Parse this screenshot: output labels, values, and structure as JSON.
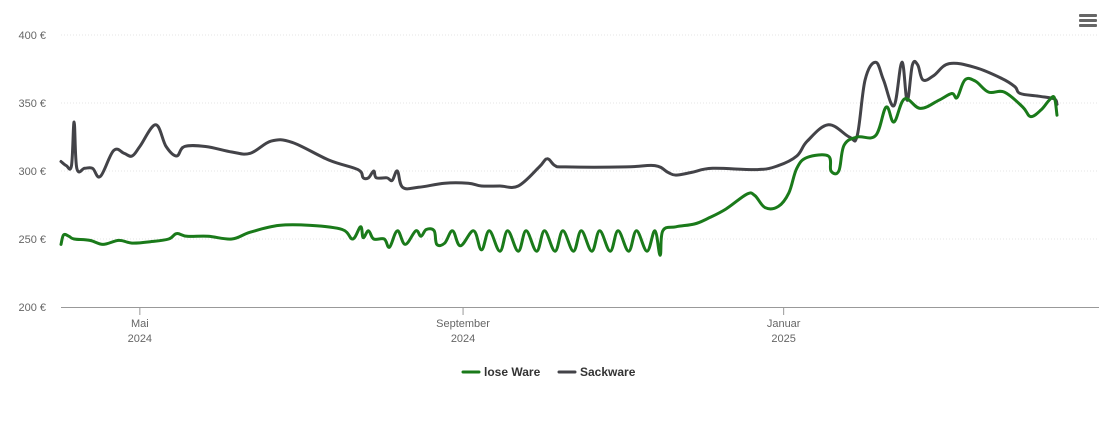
{
  "menu": {
    "icon": "hamburger-menu-icon"
  },
  "chart_data": {
    "type": "line",
    "title": "",
    "xlabel": "",
    "ylabel": "",
    "ylim": [
      200,
      400
    ],
    "y_ticks": [
      {
        "value": 200,
        "label": "200 €"
      },
      {
        "value": 250,
        "label": "250 €"
      },
      {
        "value": 300,
        "label": "300 €"
      },
      {
        "value": 350,
        "label": "350 €"
      },
      {
        "value": 400,
        "label": "400 €"
      }
    ],
    "xlim": [
      "2024-04-01",
      "2025-05-01"
    ],
    "x_ticks": [
      {
        "date": "2024-05-01",
        "line1": "Mai",
        "line2": "2024"
      },
      {
        "date": "2024-09-01",
        "line1": "September",
        "line2": "2024"
      },
      {
        "date": "2025-01-01",
        "line1": "Januar",
        "line2": "2025"
      }
    ],
    "grid": true,
    "legend_position": "bottom-center",
    "series": [
      {
        "name": "lose Ware",
        "color": "#1a7a1a",
        "points": [
          [
            "2024-04-01",
            246
          ],
          [
            "2024-04-02",
            253
          ],
          [
            "2024-04-04",
            252
          ],
          [
            "2024-04-06",
            250
          ],
          [
            "2024-04-12",
            249
          ],
          [
            "2024-04-17",
            246
          ],
          [
            "2024-04-23",
            249
          ],
          [
            "2024-04-28",
            247
          ],
          [
            "2024-05-05",
            248
          ],
          [
            "2024-05-12",
            250
          ],
          [
            "2024-05-15",
            254
          ],
          [
            "2024-05-19",
            252
          ],
          [
            "2024-05-27",
            252
          ],
          [
            "2024-06-05",
            250
          ],
          [
            "2024-06-12",
            255
          ],
          [
            "2024-06-23",
            260
          ],
          [
            "2024-07-05",
            260
          ],
          [
            "2024-07-17",
            257
          ],
          [
            "2024-07-21",
            250
          ],
          [
            "2024-07-24",
            259
          ],
          [
            "2024-07-25",
            251
          ],
          [
            "2024-07-27",
            256
          ],
          [
            "2024-07-29",
            250
          ],
          [
            "2024-08-02",
            250
          ],
          [
            "2024-08-04",
            244
          ],
          [
            "2024-08-07",
            256
          ],
          [
            "2024-08-10",
            246
          ],
          [
            "2024-08-14",
            256
          ],
          [
            "2024-08-16",
            252
          ],
          [
            "2024-08-18",
            257
          ],
          [
            "2024-08-21",
            256
          ],
          [
            "2024-08-22",
            246
          ],
          [
            "2024-08-25",
            247
          ],
          [
            "2024-08-28",
            256
          ],
          [
            "2024-08-31",
            245
          ],
          [
            "2024-09-05",
            256
          ],
          [
            "2024-09-08",
            242
          ],
          [
            "2024-09-11",
            256
          ],
          [
            "2024-09-15",
            241
          ],
          [
            "2024-09-18",
            256
          ],
          [
            "2024-09-22",
            241
          ],
          [
            "2024-09-25",
            256
          ],
          [
            "2024-09-29",
            241
          ],
          [
            "2024-10-02",
            256
          ],
          [
            "2024-10-06",
            241
          ],
          [
            "2024-10-09",
            256
          ],
          [
            "2024-10-13",
            241
          ],
          [
            "2024-10-16",
            256
          ],
          [
            "2024-10-20",
            241
          ],
          [
            "2024-10-23",
            256
          ],
          [
            "2024-10-27",
            241
          ],
          [
            "2024-10-30",
            256
          ],
          [
            "2024-11-03",
            241
          ],
          [
            "2024-11-06",
            256
          ],
          [
            "2024-11-10",
            241
          ],
          [
            "2024-11-13",
            256
          ],
          [
            "2024-11-15",
            238
          ],
          [
            "2024-11-16",
            256
          ],
          [
            "2024-11-21",
            259
          ],
          [
            "2024-11-28",
            261
          ],
          [
            "2024-12-03",
            265
          ],
          [
            "2024-12-10",
            272
          ],
          [
            "2024-12-18",
            283
          ],
          [
            "2024-12-21",
            282
          ],
          [
            "2024-12-25",
            273
          ],
          [
            "2024-12-30",
            274
          ],
          [
            "2025-01-03",
            284
          ],
          [
            "2025-01-06",
            302
          ],
          [
            "2025-01-10",
            310
          ],
          [
            "2025-01-18",
            311
          ],
          [
            "2025-01-19",
            300
          ],
          [
            "2025-01-22",
            300
          ],
          [
            "2025-01-24",
            319
          ],
          [
            "2025-01-29",
            325
          ],
          [
            "2025-02-05",
            326
          ],
          [
            "2025-02-09",
            347
          ],
          [
            "2025-02-12",
            336
          ],
          [
            "2025-02-16",
            353
          ],
          [
            "2025-02-22",
            346
          ],
          [
            "2025-03-01",
            352
          ],
          [
            "2025-03-06",
            357
          ],
          [
            "2025-03-08",
            354
          ],
          [
            "2025-03-11",
            367
          ],
          [
            "2025-03-15",
            366
          ],
          [
            "2025-03-20",
            358
          ],
          [
            "2025-03-26",
            358
          ],
          [
            "2025-04-02",
            347
          ],
          [
            "2025-04-05",
            340
          ],
          [
            "2025-04-09",
            345
          ],
          [
            "2025-04-12",
            352
          ],
          [
            "2025-04-14",
            354
          ],
          [
            "2025-04-15",
            341
          ]
        ]
      },
      {
        "name": "Sackware",
        "color": "#434348",
        "points": [
          [
            "2024-04-01",
            307
          ],
          [
            "2024-04-03",
            304
          ],
          [
            "2024-04-05",
            304
          ],
          [
            "2024-04-06",
            336
          ],
          [
            "2024-04-07",
            302
          ],
          [
            "2024-04-10",
            302
          ],
          [
            "2024-04-13",
            302
          ],
          [
            "2024-04-16",
            296
          ],
          [
            "2024-04-21",
            315
          ],
          [
            "2024-04-25",
            313
          ],
          [
            "2024-04-28",
            311
          ],
          [
            "2024-05-01",
            318
          ],
          [
            "2024-05-07",
            334
          ],
          [
            "2024-05-11",
            318
          ],
          [
            "2024-05-15",
            311
          ],
          [
            "2024-05-18",
            318
          ],
          [
            "2024-05-26",
            318
          ],
          [
            "2024-06-05",
            314
          ],
          [
            "2024-06-12",
            313
          ],
          [
            "2024-06-20",
            322
          ],
          [
            "2024-06-28",
            321
          ],
          [
            "2024-07-12",
            308
          ],
          [
            "2024-07-23",
            301
          ],
          [
            "2024-07-25",
            295
          ],
          [
            "2024-07-27",
            295
          ],
          [
            "2024-07-29",
            300
          ],
          [
            "2024-07-30",
            295
          ],
          [
            "2024-08-03",
            295
          ],
          [
            "2024-08-05",
            293
          ],
          [
            "2024-08-07",
            300
          ],
          [
            "2024-08-09",
            288
          ],
          [
            "2024-08-15",
            288
          ],
          [
            "2024-08-25",
            291
          ],
          [
            "2024-09-03",
            291
          ],
          [
            "2024-09-08",
            289
          ],
          [
            "2024-09-15",
            289
          ],
          [
            "2024-09-22",
            289
          ],
          [
            "2024-09-30",
            303
          ],
          [
            "2024-10-03",
            309
          ],
          [
            "2024-10-06",
            304
          ],
          [
            "2024-10-10",
            303
          ],
          [
            "2024-11-02",
            303
          ],
          [
            "2024-11-13",
            304
          ],
          [
            "2024-11-18",
            299
          ],
          [
            "2024-11-21",
            297
          ],
          [
            "2024-11-27",
            299
          ],
          [
            "2024-12-05",
            302
          ],
          [
            "2024-12-22",
            301
          ],
          [
            "2024-12-30",
            304
          ],
          [
            "2025-01-06",
            311
          ],
          [
            "2025-01-10",
            322
          ],
          [
            "2025-01-18",
            334
          ],
          [
            "2025-01-26",
            325
          ],
          [
            "2025-01-29",
            326
          ],
          [
            "2025-02-01",
            367
          ],
          [
            "2025-02-05",
            380
          ],
          [
            "2025-02-08",
            367
          ],
          [
            "2025-02-12",
            348
          ],
          [
            "2025-02-15",
            380
          ],
          [
            "2025-02-17",
            352
          ],
          [
            "2025-02-19",
            378
          ],
          [
            "2025-02-21",
            378
          ],
          [
            "2025-02-23",
            367
          ],
          [
            "2025-02-27",
            370
          ],
          [
            "2025-03-05",
            379
          ],
          [
            "2025-03-15",
            376
          ],
          [
            "2025-03-25",
            368
          ],
          [
            "2025-03-30",
            362
          ],
          [
            "2025-04-01",
            357
          ],
          [
            "2025-04-08",
            355
          ],
          [
            "2025-04-14",
            353
          ],
          [
            "2025-04-15",
            349
          ]
        ]
      }
    ]
  }
}
